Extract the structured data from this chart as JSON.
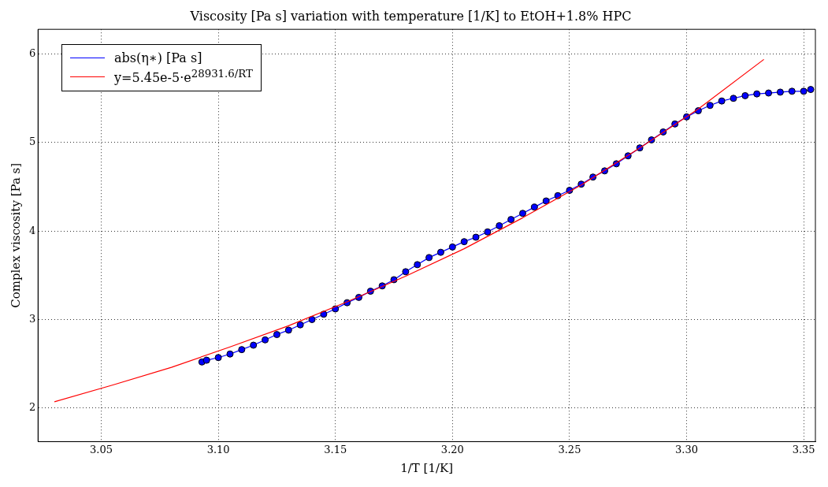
{
  "chart_data": {
    "type": "line",
    "title": "Viscosity [Pa s] variation with temperature [1/K] to EtOH+1.8% HPC",
    "xlabel": "1/T [1/K]",
    "ylabel": "Complex viscosity [Pa s]",
    "xlim": [
      3.023,
      3.355
    ],
    "ylim": [
      1.62,
      6.28
    ],
    "xticks": [
      3.05,
      {
        "value": 3.1,
        "label": "3.10"
      },
      3.15,
      {
        "value": 3.2,
        "label": "3.20"
      },
      3.25,
      {
        "value": 3.3,
        "label": "3.30"
      },
      3.35
    ],
    "yticks": [
      2,
      3,
      4,
      5,
      6
    ],
    "grid": true,
    "legend": "top left",
    "series": [
      {
        "name": "abs(η∗) [Pa s]",
        "color": "#0000ff",
        "marker": "circle",
        "x": [
          3.093,
          3.095,
          3.1,
          3.105,
          3.11,
          3.115,
          3.12,
          3.125,
          3.13,
          3.135,
          3.14,
          3.145,
          3.15,
          3.155,
          3.16,
          3.165,
          3.17,
          3.175,
          3.18,
          3.185,
          3.19,
          3.195,
          3.2,
          3.205,
          3.21,
          3.215,
          3.22,
          3.225,
          3.23,
          3.235,
          3.24,
          3.245,
          3.25,
          3.255,
          3.26,
          3.265,
          3.27,
          3.275,
          3.28,
          3.285,
          3.29,
          3.295,
          3.3,
          3.305,
          3.31,
          3.315,
          3.32,
          3.325,
          3.33,
          3.335,
          3.34,
          3.345,
          3.35,
          3.353
        ],
        "values": [
          2.52,
          2.54,
          2.57,
          2.61,
          2.66,
          2.71,
          2.77,
          2.83,
          2.88,
          2.94,
          3.0,
          3.06,
          3.12,
          3.19,
          3.25,
          3.32,
          3.38,
          3.45,
          3.54,
          3.62,
          3.7,
          3.76,
          3.82,
          3.88,
          3.93,
          3.99,
          4.06,
          4.13,
          4.2,
          4.27,
          4.34,
          4.4,
          4.46,
          4.53,
          4.61,
          4.68,
          4.76,
          4.85,
          4.94,
          5.03,
          5.12,
          5.21,
          5.29,
          5.36,
          5.42,
          5.47,
          5.5,
          5.53,
          5.55,
          5.56,
          5.57,
          5.58,
          5.58,
          5.6
        ]
      },
      {
        "name": "y=5.45e-5·e$^{28931.6/RT}$",
        "color": "#ff0000",
        "marker": "none",
        "x": [
          3.03,
          3.055,
          3.08,
          3.105,
          3.13,
          3.155,
          3.18,
          3.205,
          3.23,
          3.255,
          3.28,
          3.305,
          3.333
        ],
        "values": [
          2.07,
          2.26,
          2.46,
          2.69,
          2.93,
          3.2,
          3.49,
          3.8,
          4.15,
          4.52,
          4.94,
          5.38,
          5.94
        ]
      }
    ]
  }
}
